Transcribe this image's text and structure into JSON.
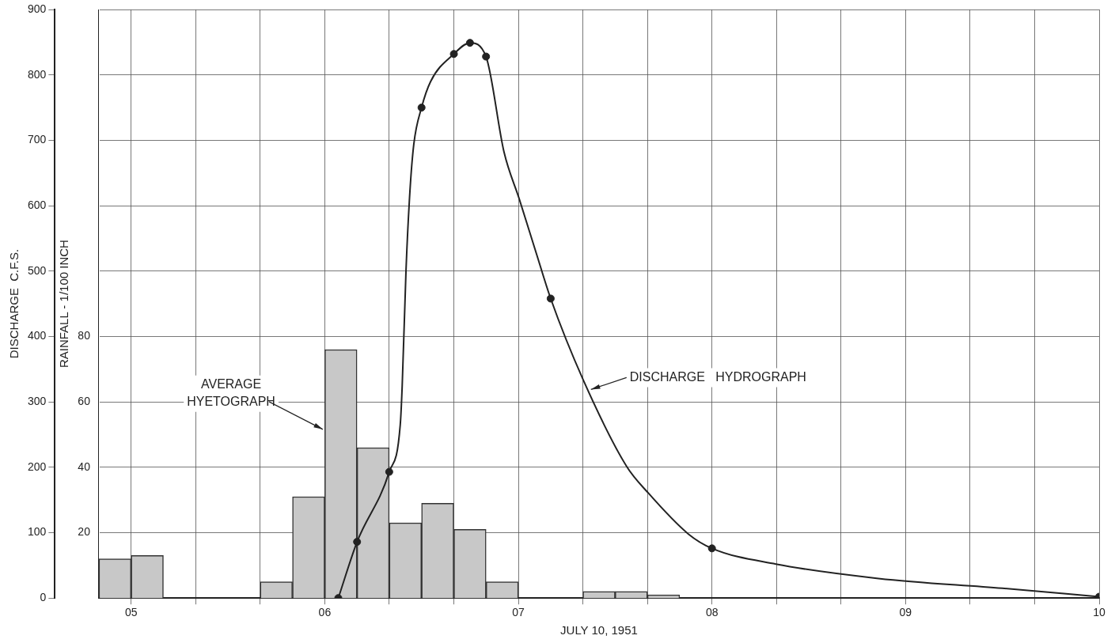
{
  "chart_data": {
    "type": "line",
    "xlabel": "JULY 10, 1951",
    "ylabel": "DISCHARGE  C.F.S.",
    "y2label": "RAINFALL - 1/100 INCH",
    "xlim": [
      4.8333,
      10
    ],
    "xticks": [
      {
        "value": 5,
        "label": "05"
      },
      {
        "value": 5.3333,
        "label": null
      },
      {
        "value": 5.6667,
        "label": null
      },
      {
        "value": 6,
        "label": "06"
      },
      {
        "value": 6.3333,
        "label": null
      },
      {
        "value": 6.6667,
        "label": null
      },
      {
        "value": 7,
        "label": "07"
      },
      {
        "value": 7.3333,
        "label": null
      },
      {
        "value": 7.6667,
        "label": null
      },
      {
        "value": 8,
        "label": "08"
      },
      {
        "value": 8.3333,
        "label": null
      },
      {
        "value": 8.6667,
        "label": null
      },
      {
        "value": 9,
        "label": "09"
      },
      {
        "value": 9.3333,
        "label": null
      },
      {
        "value": 9.6667,
        "label": null
      },
      {
        "value": 10,
        "label": "10"
      }
    ],
    "ylim": [
      0,
      900
    ],
    "yticks": [
      0,
      100,
      200,
      300,
      400,
      500,
      600,
      700,
      800,
      900
    ],
    "y2lim": [
      0,
      180
    ],
    "y2ticks": [
      20,
      40,
      60,
      80
    ],
    "grid": true,
    "legend": false,
    "series": [
      {
        "type": "bar",
        "axis": "y2",
        "color": "#c8c8c8",
        "x": [
          4.9167,
          5.0833,
          5.25,
          5.4167,
          5.5833,
          5.75,
          5.9167,
          6.0833,
          6.25,
          6.4167,
          6.5833,
          6.75,
          6.9167,
          7.0833,
          7.25,
          7.4167,
          7.5833,
          7.75
        ],
        "values": [
          12,
          13,
          0,
          0,
          0,
          5,
          31,
          76,
          46,
          23,
          29,
          21,
          5,
          0,
          0,
          2,
          2,
          1
        ]
      },
      {
        "color": "#222222",
        "marker": "none",
        "x": [
          6.07,
          6.167,
          6.333,
          6.39,
          6.4,
          6.42,
          6.44,
          6.46,
          6.5,
          6.547,
          6.667,
          6.75,
          6.833,
          6.926,
          7.005,
          7.093,
          7.167,
          7.336,
          7.56,
          7.667,
          7.878,
          8,
          8.33,
          8.86,
          9.5,
          10
        ],
        "values": [
          0,
          86,
          193,
          265,
          324,
          503,
          622,
          694,
          750,
          790,
          832,
          849,
          828,
          682,
          610,
          527,
          458,
          333,
          201,
          162,
          98,
          76,
          52,
          30,
          15,
          2
        ]
      },
      {
        "type": "scatter",
        "color": "#222222",
        "marker": "circle",
        "x": [
          6.07,
          6.167,
          6.333,
          6.5,
          6.667,
          6.75,
          6.833,
          7.167,
          8,
          10
        ],
        "values": [
          0,
          86,
          193,
          750,
          832,
          849,
          828,
          458,
          76,
          2
        ]
      }
    ],
    "annotations": [
      {
        "text": "AVERAGE\nHYETOGRAPH",
        "x": 5.99,
        "y": 258
      },
      {
        "text": "DISCHARGE   HYDROGRAPH",
        "x": 7.375,
        "y": 319
      }
    ]
  }
}
